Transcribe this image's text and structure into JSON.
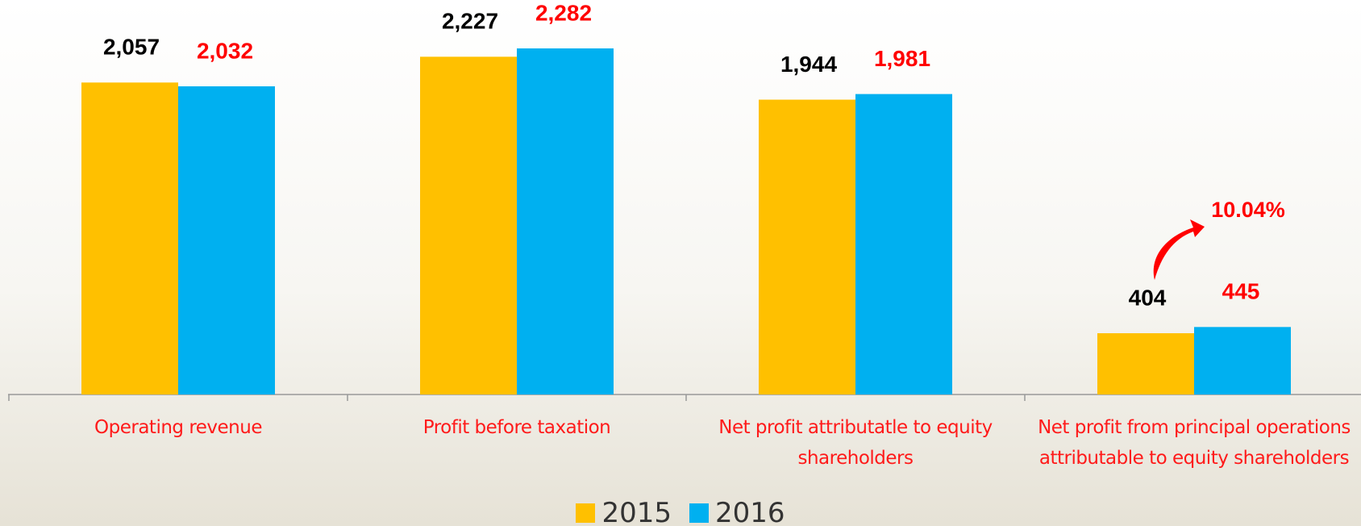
{
  "chart_data": {
    "type": "bar",
    "categories": [
      "Operating revenue",
      "Profit before taxation",
      "Net profit attributatle to equity shareholders",
      "Net profit from principal operations attributable to equity shareholders"
    ],
    "series": [
      {
        "name": "2015",
        "color": "#ffc000",
        "label_color": "#000000",
        "values": [
          2057,
          2227,
          1944,
          404
        ],
        "value_labels": [
          "2,057",
          "2,227",
          "1,944",
          "404"
        ]
      },
      {
        "name": "2016",
        "color": "#00b0f0",
        "label_color": "#ff0000",
        "values": [
          2032,
          2282,
          1981,
          445
        ],
        "value_labels": [
          "2,032",
          "2,282",
          "1,981",
          "445"
        ]
      }
    ],
    "annotation": "10.04%"
  }
}
